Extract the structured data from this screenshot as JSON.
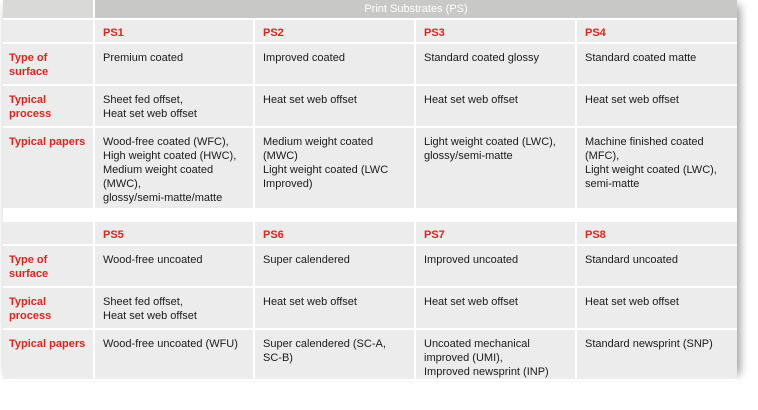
{
  "table_title": "Print Substrates (PS)",
  "row_labels": {
    "surface": "Type of surface",
    "process": "Typical process",
    "papers": "Typical papers"
  },
  "group1": {
    "columns": [
      "PS1",
      "PS2",
      "PS3",
      "PS4"
    ],
    "surface": [
      "Premium coated",
      "Improved coated",
      "Standard coated glossy",
      "Standard coated matte"
    ],
    "process": [
      "Sheet fed offset,\nHeat set web offset",
      "Heat set web offset",
      "Heat set web offset",
      "Heat set web offset"
    ],
    "papers": [
      "Wood-free coated (WFC),\nHigh weight coated (HWC),\nMedium weight coated\n(MWC),\nglossy/semi-matte/matte",
      "Medium weight coated\n(MWC)\nLight weight coated (LWC\nImproved)",
      "Light weight coated (LWC),\nglossy/semi-matte",
      "Machine finished coated\n(MFC),\nLight weight coated (LWC),\nsemi-matte"
    ]
  },
  "group2": {
    "columns": [
      "PS5",
      "PS6",
      "PS7",
      "PS8"
    ],
    "surface": [
      "Wood-free uncoated",
      "Super calendered",
      "Improved uncoated",
      "Standard uncoated"
    ],
    "process": [
      "Sheet fed offset,\nHeat set web offset",
      "Heat set web offset",
      "Heat set web offset",
      "Heat set web offset"
    ],
    "papers": [
      "Wood-free uncoated (WFU)",
      "Super calendered (SC-A,\nSC-B)",
      "Uncoated mechanical\nimproved (UMI),\nImproved newsprint (INP)",
      "Standard newsprint (SNP)"
    ]
  }
}
